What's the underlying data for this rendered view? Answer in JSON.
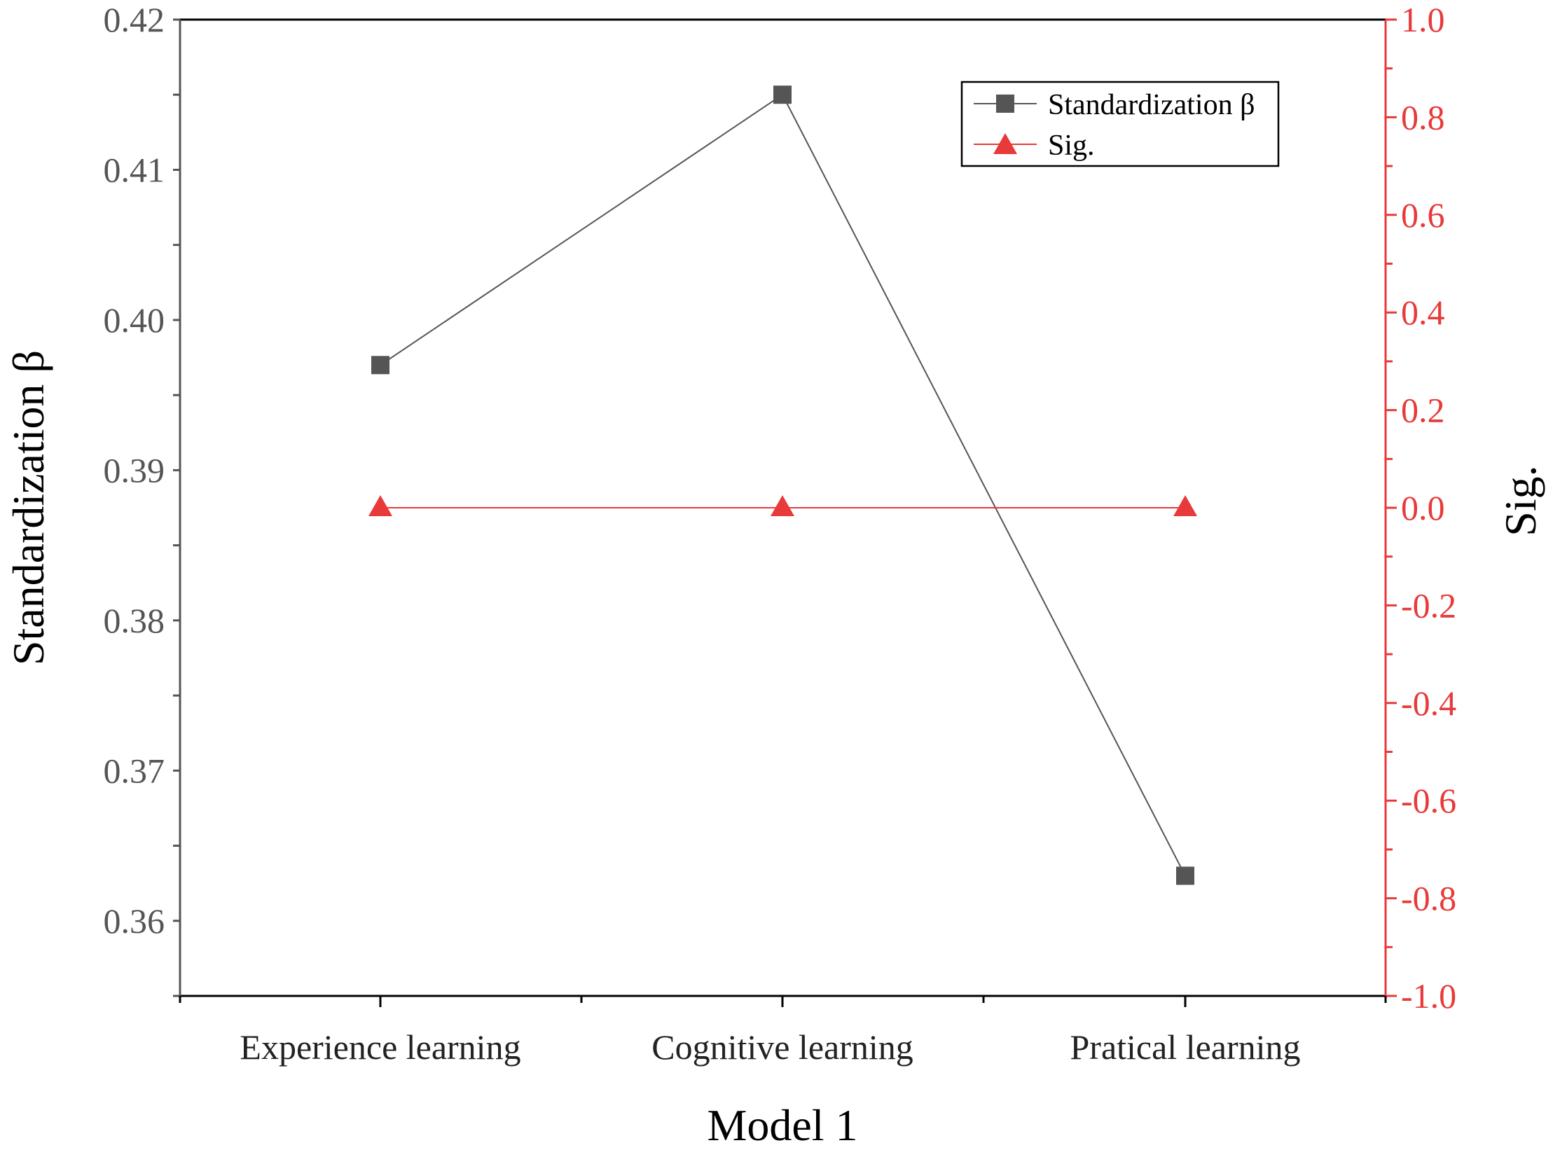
{
  "chart_data": {
    "type": "line",
    "categories": [
      "Experience learning",
      "Cognitive learning",
      "Pratical learning"
    ],
    "xlabel": "Model 1",
    "y_left": {
      "label": "Standardization β",
      "range": [
        0.355,
        0.42
      ],
      "ticks": [
        "0.36",
        "0.37",
        "0.38",
        "0.39",
        "0.40",
        "0.41",
        "0.42"
      ],
      "tick_values": [
        0.36,
        0.37,
        0.38,
        0.39,
        0.4,
        0.41,
        0.42
      ],
      "color": "#555555"
    },
    "y_right": {
      "label": "Sig.",
      "range": [
        -1.0,
        1.0
      ],
      "ticks": [
        "-1.0",
        "-0.8",
        "-0.6",
        "-0.4",
        "-0.2",
        "0.0",
        "0.2",
        "0.4",
        "0.6",
        "0.8",
        "1.0"
      ],
      "tick_values": [
        -1.0,
        -0.8,
        -0.6,
        -0.4,
        -0.2,
        0.0,
        0.2,
        0.4,
        0.6,
        0.8,
        1.0
      ],
      "color": "#e83a3a"
    },
    "series": [
      {
        "name": "Standardization β",
        "axis": "left",
        "marker": "square",
        "color": "#555555",
        "values": [
          0.397,
          0.415,
          0.363
        ]
      },
      {
        "name": "Sig.",
        "axis": "right",
        "marker": "triangle",
        "color": "#e83a3a",
        "values": [
          0.0,
          0.0,
          0.0
        ]
      }
    ],
    "legend_position": "top-right",
    "grid": false
  }
}
